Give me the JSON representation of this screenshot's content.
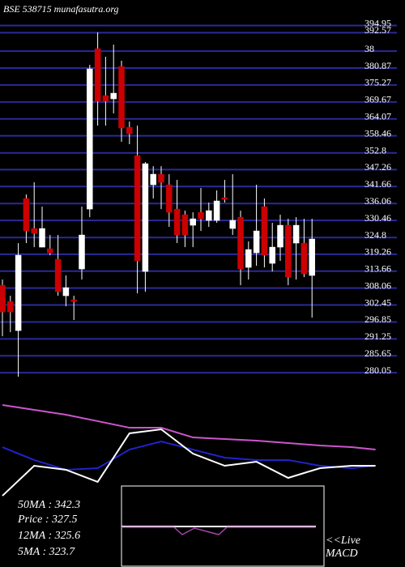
{
  "chart_data": {
    "type": "candlestick",
    "title": "BSE 538715 munafasutra.org",
    "ylim": [
      277.4,
      403.4
    ],
    "yticks": [
      394.95,
      392.57,
      {
        "value": 386.47,
        "label": "38"
      },
      380.87,
      375.27,
      369.67,
      364.07,
      358.46,
      352.8,
      347.26,
      341.66,
      336.06,
      330.46,
      324.8,
      319.26,
      313.66,
      308.06,
      302.45,
      296.85,
      291.25,
      285.65,
      280.05
    ],
    "up_color": "#ffffff",
    "down_color": "#cc0000",
    "open": [
      309.01,
      303.65,
      293.99,
      337.7,
      327.78,
      321.61,
      321.07,
      317.59,
      305.52,
      304.18,
      314.37,
      334.21,
      387.3,
      371.75,
      370.68,
      381.4,
      361.3,
      351.9,
      313.57,
      342.25,
      345.74,
      342.25,
      334.21,
      332.34,
      328.85,
      333.14,
      330.46,
      330.46,
      337.97,
      327.78,
      331.53,
      314.91,
      319.73,
      335.02,
      316.24,
      321.61,
      328.85,
      322.95,
      322.95,
      312.23
    ],
    "high": [
      310.88,
      305.52,
      322.95,
      339.04,
      343.06,
      335.02,
      325.63,
      325.63,
      312.23,
      305.52,
      335.02,
      381.94,
      392.67,
      384.62,
      388.64,
      383.28,
      363.17,
      361.83,
      349.77,
      348.42,
      348.42,
      345.74,
      343.86,
      333.68,
      333.14,
      341.18,
      336.36,
      340.38,
      343.86,
      345.74,
      333.68,
      323.49,
      342.25,
      337.7,
      329.65,
      332.34,
      330.99,
      331.53,
      330.99,
      330.99
    ],
    "low": [
      292.12,
      293.46,
      278.7,
      322.95,
      321.61,
      321.61,
      318.93,
      305.52,
      302.04,
      297.49,
      310.88,
      331.53,
      361.83,
      361.83,
      365.86,
      356.47,
      355.67,
      306.33,
      306.86,
      337.7,
      334.21,
      328.31,
      322.95,
      321.61,
      321.61,
      326.97,
      328.31,
      329.65,
      336.36,
      325.63,
      309.01,
      310.88,
      315.44,
      314.91,
      313.57,
      317.05,
      309.01,
      310.88,
      311.69,
      298.28
    ],
    "close": [
      300.16,
      300.16,
      318.93,
      326.97,
      326.17,
      327.78,
      319.73,
      306.86,
      308.2,
      303.65,
      325.63,
      380.6,
      369.88,
      369.88,
      372.56,
      361.03,
      359.15,
      317.05,
      349.23,
      345.74,
      343.06,
      333.14,
      325.63,
      325.63,
      330.99,
      330.99,
      333.68,
      336.9,
      337.43,
      330.46,
      314.37,
      320.81,
      326.97,
      318.93,
      321.61,
      328.85,
      311.69,
      328.85,
      312.76,
      324.29
    ],
    "indicators": {
      "ylim": [
        0,
        100
      ],
      "x": [
        0,
        4,
        8,
        12,
        16,
        20,
        24,
        28,
        32,
        36,
        40,
        44,
        47
      ],
      "series": [
        {
          "color": "#cc55cc",
          "values": [
            80,
            76,
            72,
            66.7,
            61.3,
            61.3,
            53.3,
            52,
            50.7,
            48.7,
            46.7,
            45.3,
            43.3
          ]
        },
        {
          "color": "#2222cc",
          "values": [
            45.3,
            34.7,
            26.7,
            28,
            43.3,
            50,
            43.3,
            36.7,
            34.7,
            34.7,
            30,
            28,
            30
          ]
        },
        {
          "color": "#ffffff",
          "values": [
            5.3,
            30,
            26.7,
            16.7,
            56.7,
            60,
            40,
            30,
            33.3,
            20,
            28,
            30,
            30
          ]
        }
      ]
    },
    "info": [
      "50MA : 342.3",
      "Price  : 327.5",
      "12MA : 325.6",
      "5MA : 323.7"
    ],
    "live_label": "<<Live",
    "macd_label": "MACD"
  }
}
